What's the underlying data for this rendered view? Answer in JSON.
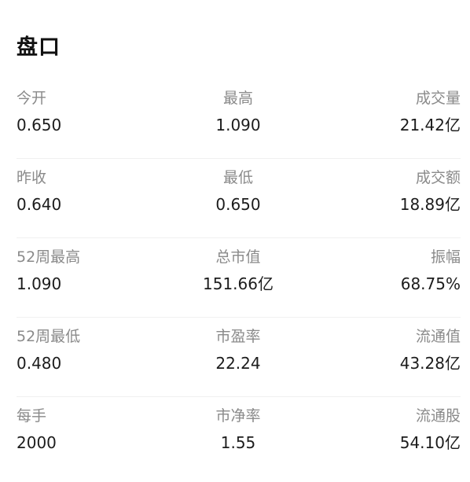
{
  "panel": {
    "title": "盘口"
  },
  "rows": [
    {
      "left": {
        "label": "今开",
        "value": "0.650"
      },
      "mid": {
        "label": "最高",
        "value": "1.090"
      },
      "right": {
        "label": "成交量",
        "value": "21.42亿"
      }
    },
    {
      "left": {
        "label": "昨收",
        "value": "0.640"
      },
      "mid": {
        "label": "最低",
        "value": "0.650"
      },
      "right": {
        "label": "成交额",
        "value": "18.89亿"
      }
    },
    {
      "left": {
        "label": "52周最高",
        "value": "1.090"
      },
      "mid": {
        "label": "总市值",
        "value": "151.66亿"
      },
      "right": {
        "label": "振幅",
        "value": "68.75%"
      }
    },
    {
      "left": {
        "label": "52周最低",
        "value": "0.480"
      },
      "mid": {
        "label": "市盈率",
        "value": "22.24"
      },
      "right": {
        "label": "流通值",
        "value": "43.28亿"
      }
    },
    {
      "left": {
        "label": "每手",
        "value": "2000"
      },
      "mid": {
        "label": "市净率",
        "value": "1.55"
      },
      "right": {
        "label": "流通股",
        "value": "54.10亿"
      }
    }
  ]
}
